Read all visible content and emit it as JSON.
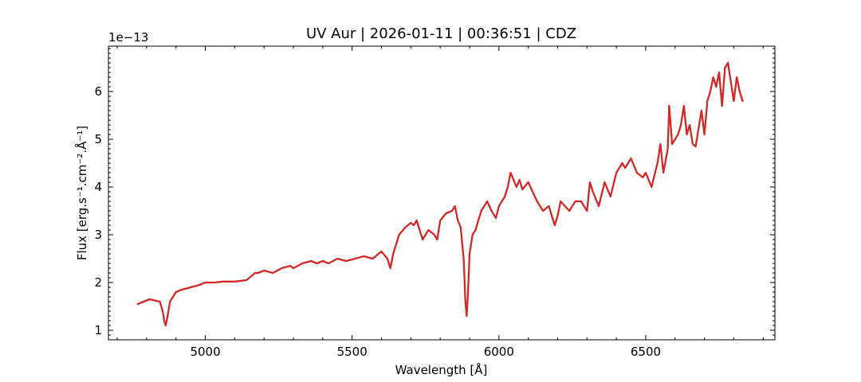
{
  "chart_data": {
    "type": "line",
    "title": "UV Aur | 2026-01-11 | 00:36:51 | CDZ",
    "xlabel": "Wavelength [Å]",
    "ylabel": "Flux [erg.s⁻¹.cm⁻².Å⁻¹]",
    "y_offset_text": "1e−13",
    "xlim": [
      4670,
      6940
    ],
    "ylim": [
      0.8,
      6.95
    ],
    "x_ticks": [
      5000,
      5500,
      6000,
      6500
    ],
    "x_tick_labels": [
      "5000",
      "5500",
      "6000",
      "6500"
    ],
    "y_ticks": [
      1,
      2,
      3,
      4,
      5,
      6
    ],
    "y_tick_labels": [
      "1",
      "2",
      "3",
      "4",
      "5",
      "6"
    ],
    "line_color": "#d62728",
    "grid": false,
    "series": [
      {
        "x": [
          4770,
          4790,
          4810,
          4830,
          4845,
          4855,
          4860,
          4865,
          4870,
          4880,
          4900,
          4920,
          4950,
          4980,
          5000,
          5030,
          5060,
          5100,
          5140,
          5170,
          5180,
          5200,
          5230,
          5260,
          5290,
          5300,
          5330,
          5360,
          5380,
          5400,
          5420,
          5450,
          5480,
          5510,
          5540,
          5570,
          5600,
          5620,
          5630,
          5640,
          5660,
          5680,
          5700,
          5710,
          5720,
          5740,
          5760,
          5780,
          5790,
          5800,
          5820,
          5840,
          5850,
          5860,
          5870,
          5880,
          5886,
          5890,
          5894,
          5900,
          5910,
          5920,
          5940,
          5960,
          5975,
          5990,
          6000,
          6020,
          6030,
          6040,
          6060,
          6070,
          6080,
          6100,
          6130,
          6150,
          6170,
          6190,
          6200,
          6210,
          6225,
          6240,
          6260,
          6280,
          6300,
          6310,
          6320,
          6340,
          6360,
          6380,
          6400,
          6420,
          6430,
          6450,
          6470,
          6490,
          6500,
          6520,
          6540,
          6550,
          6560,
          6575,
          6580,
          6590,
          6610,
          6620,
          6630,
          6640,
          6650,
          6660,
          6670,
          6690,
          6700,
          6710,
          6720,
          6730,
          6740,
          6750,
          6760,
          6770,
          6780,
          6790,
          6800,
          6810,
          6820,
          6830
        ],
        "y": [
          1.55,
          1.6,
          1.65,
          1.62,
          1.6,
          1.4,
          1.2,
          1.1,
          1.25,
          1.6,
          1.8,
          1.85,
          1.9,
          1.95,
          2.0,
          2.0,
          2.02,
          2.02,
          2.05,
          2.2,
          2.2,
          2.25,
          2.2,
          2.3,
          2.35,
          2.3,
          2.4,
          2.45,
          2.4,
          2.45,
          2.4,
          2.5,
          2.45,
          2.5,
          2.55,
          2.5,
          2.65,
          2.5,
          2.3,
          2.6,
          3.0,
          3.15,
          3.25,
          3.2,
          3.3,
          2.9,
          3.1,
          3.0,
          2.9,
          3.3,
          3.45,
          3.5,
          3.6,
          3.3,
          3.15,
          2.5,
          1.6,
          1.3,
          1.7,
          2.6,
          3.0,
          3.1,
          3.5,
          3.7,
          3.5,
          3.35,
          3.6,
          3.8,
          4.0,
          4.3,
          4.0,
          4.15,
          3.95,
          4.1,
          3.7,
          3.5,
          3.6,
          3.2,
          3.4,
          3.7,
          3.6,
          3.5,
          3.7,
          3.7,
          3.5,
          4.1,
          3.9,
          3.6,
          4.1,
          3.8,
          4.3,
          4.5,
          4.4,
          4.6,
          4.3,
          4.2,
          4.3,
          4.0,
          4.5,
          4.9,
          4.3,
          4.8,
          5.7,
          4.9,
          5.1,
          5.3,
          5.7,
          5.1,
          5.3,
          4.9,
          4.85,
          5.6,
          5.1,
          5.8,
          6.0,
          6.3,
          6.1,
          6.4,
          5.7,
          6.5,
          6.6,
          6.2,
          5.8,
          6.3,
          6.0,
          5.8
        ],
        "values_scale": "1e-13"
      }
    ]
  }
}
